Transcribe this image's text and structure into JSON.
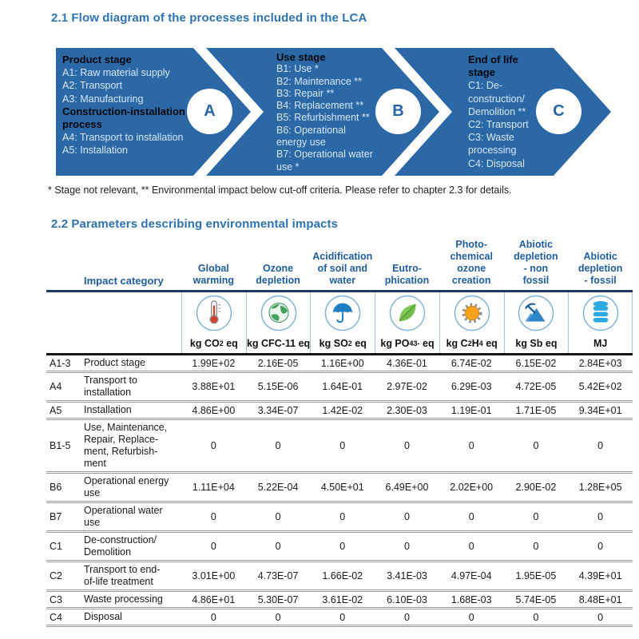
{
  "sections": {
    "flow_title": "2.1 Flow diagram of the processes included in the LCA",
    "table_title": "2.2 Parameters describing environmental impacts",
    "footnote": "* Stage not relevant, ** Environmental impact below cut-off criteria. Please refer to chapter 2.3 for details."
  },
  "colors": {
    "chevron_blue": "#2A69A6",
    "title_blue": "#2E74B5",
    "header_blue": "#1F5FA0",
    "navy_rule": "#1F3864",
    "stage_item_text": "#D7E7F6",
    "icon_ring": "#7FB3D9"
  },
  "flow_diagram": {
    "stages": [
      {
        "letter": "A",
        "name": "Product stage / Construction-installation process",
        "lines": [
          {
            "t": "Product stage",
            "b": 1
          },
          {
            "t": "A1: Raw material supply"
          },
          {
            "t": "A2: Transport"
          },
          {
            "t": "A3: Manufacturing"
          },
          {
            "t": "Construction-installation",
            "b": 1
          },
          {
            "t": "process",
            "b": 1
          },
          {
            "t": "A4: Transport to installation"
          },
          {
            "t": "A5: Installation"
          }
        ]
      },
      {
        "letter": "B",
        "name": "Use stage",
        "lines": [
          {
            "t": "Use stage",
            "b": 1
          },
          {
            "t": "B1: Use *"
          },
          {
            "t": "B2: Maintenance **"
          },
          {
            "t": "B3: Repair **"
          },
          {
            "t": "B4: Replacement **"
          },
          {
            "t": "B5: Refurbishment **"
          },
          {
            "t": "B6: Operational"
          },
          {
            "t": "energy use"
          },
          {
            "t": "B7: Operational water"
          },
          {
            "t": "use *"
          }
        ]
      },
      {
        "letter": "C",
        "name": "End of life stage",
        "lines": [
          {
            "t": "End of life",
            "b": 1
          },
          {
            "t": "stage",
            "b": 1
          },
          {
            "t": "C1: De-"
          },
          {
            "t": "construction/"
          },
          {
            "t": "Demolition **"
          },
          {
            "t": "C2: Transport"
          },
          {
            "t": "C3: Waste"
          },
          {
            "t": "processing"
          },
          {
            "t": "C4: Disposal"
          }
        ]
      }
    ]
  },
  "impact_table": {
    "corner_label": "Impact category",
    "columns": [
      {
        "label": "Global warming",
        "label_html": "Global<br>warming",
        "icon": "thermometer-icon",
        "unit": "kg CO2 eq",
        "unit_html": "kg CO<sub>2</sub>&nbsp;eq"
      },
      {
        "label": "Ozone depletion",
        "label_html": "Ozone<br>depletion",
        "icon": "globe-icon",
        "unit": "kg CFC-11 eq",
        "unit_html": "kg CFC-11 eq"
      },
      {
        "label": "Acidification of soil and water",
        "label_html": "Acidification<br>of soil and<br>water",
        "icon": "umbrella-icon",
        "unit": "kg SO2 eq",
        "unit_html": "kg SO<sub>2</sub>&nbsp;eq"
      },
      {
        "label": "Eutrophication",
        "label_html": "Eutro-<br>phication",
        "icon": "leaf-icon",
        "unit": "kg PO4 3- eq",
        "unit_html": "kg PO<sub>4</sub><sup>3-</sup>&nbsp;eq"
      },
      {
        "label": "Photochemical ozone creation",
        "label_html": "Photo-<br>chemical<br>ozone<br>creation",
        "icon": "sun-icon",
        "unit": "kg C2H4 eq",
        "unit_html": "kg C<sub>2</sub>H<sub>4</sub>&nbsp;eq"
      },
      {
        "label": "Abiotic depletion - non fossil",
        "label_html": "Abiotic<br>depletion<br>- non<br>fossil",
        "icon": "mountain-pickaxe-icon",
        "unit": "kg Sb eq",
        "unit_html": "kg Sb eq"
      },
      {
        "label": "Abiotic depletion - fossil",
        "label_html": "Abiotic<br>depletion<br>- fossil",
        "icon": "oil-cylinders-icon",
        "unit": "MJ",
        "unit_html": "MJ"
      }
    ],
    "rows": [
      {
        "code": "A1-3",
        "category": "Product stage",
        "category_html": "Product stage",
        "values": [
          "1.99E+02",
          "2.16E-05",
          "1.16E+00",
          "4.36E-01",
          "6.74E-02",
          "6.15E-02",
          "2.84E+03"
        ]
      },
      {
        "code": "A4",
        "category": "Transport to installation",
        "category_html": "Transport to<br>installation",
        "values": [
          "3.88E+01",
          "5.15E-06",
          "1.64E-01",
          "2.97E-02",
          "6.29E-03",
          "4.72E-05",
          "5.42E+02"
        ]
      },
      {
        "code": "A5",
        "category": "Installation",
        "category_html": "Installation",
        "values": [
          "4.86E+00",
          "3.34E-07",
          "1.42E-02",
          "2.30E-03",
          "1.19E-01",
          "1.71E-05",
          "9.34E+01"
        ]
      },
      {
        "code": "B1-5",
        "category": "Use, Maintenance, Repair, Replacement, Refurbishment",
        "category_html": "Use, Maintenance,<br>Repair, Replace-<br>ment, Refurbish-<br>ment",
        "values": [
          "0",
          "0",
          "0",
          "0",
          "0",
          "0",
          "0"
        ]
      },
      {
        "code": "B6",
        "category": "Operational energy use",
        "category_html": "Operational energy<br>use",
        "values": [
          "1.11E+04",
          "5.22E-04",
          "4.50E+01",
          "6.49E+00",
          "2.02E+00",
          "2.90E-02",
          "1.28E+05"
        ]
      },
      {
        "code": "B7",
        "category": "Operational water use",
        "category_html": "Operational water<br>use",
        "values": [
          "0",
          "0",
          "0",
          "0",
          "0",
          "0",
          "0"
        ]
      },
      {
        "code": "C1",
        "category": "De-construction/ Demolition",
        "category_html": "De-construction/<br>Demolition",
        "values": [
          "0",
          "0",
          "0",
          "0",
          "0",
          "0",
          "0"
        ]
      },
      {
        "code": "C2",
        "category": "Transport to end-of-life treatment",
        "category_html": "Transport to end-<br>of-life treatment",
        "values": [
          "3.01E+00",
          "4.73E-07",
          "1.66E-02",
          "3.41E-03",
          "4.97E-04",
          "1.95E-05",
          "4.39E+01"
        ]
      },
      {
        "code": "C3",
        "category": "Waste processing",
        "category_html": "Waste processing",
        "values": [
          "4.86E+01",
          "5.30E-07",
          "3.61E-02",
          "6.10E-03",
          "1.68E-03",
          "5.74E-05",
          "8.48E+01"
        ]
      },
      {
        "code": "C4",
        "category": "Disposal",
        "category_html": "Disposal",
        "values": [
          "0",
          "0",
          "0",
          "0",
          "0",
          "0",
          "0"
        ]
      }
    ]
  }
}
